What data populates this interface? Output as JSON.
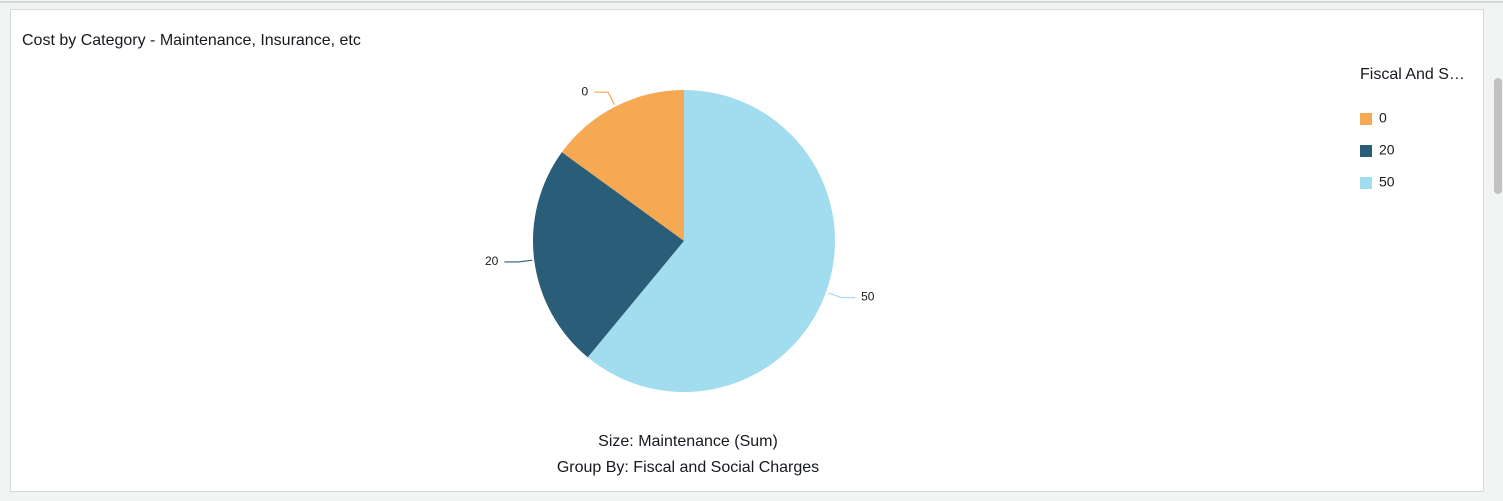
{
  "chart_data": {
    "type": "pie",
    "title": "Cost by Category - Maintenance, Insurance, etc",
    "legend_title": "Fiscal And S…",
    "legend_position": "top-right",
    "categories": [
      "0",
      "20",
      "50"
    ],
    "values": [
      15,
      24,
      61
    ],
    "colors": [
      "#f5a952",
      "#2a5d78",
      "#a2ddef"
    ],
    "footer": [
      "Size: Maintenance (Sum)",
      "Group By: Fiscal and Social Charges"
    ]
  }
}
